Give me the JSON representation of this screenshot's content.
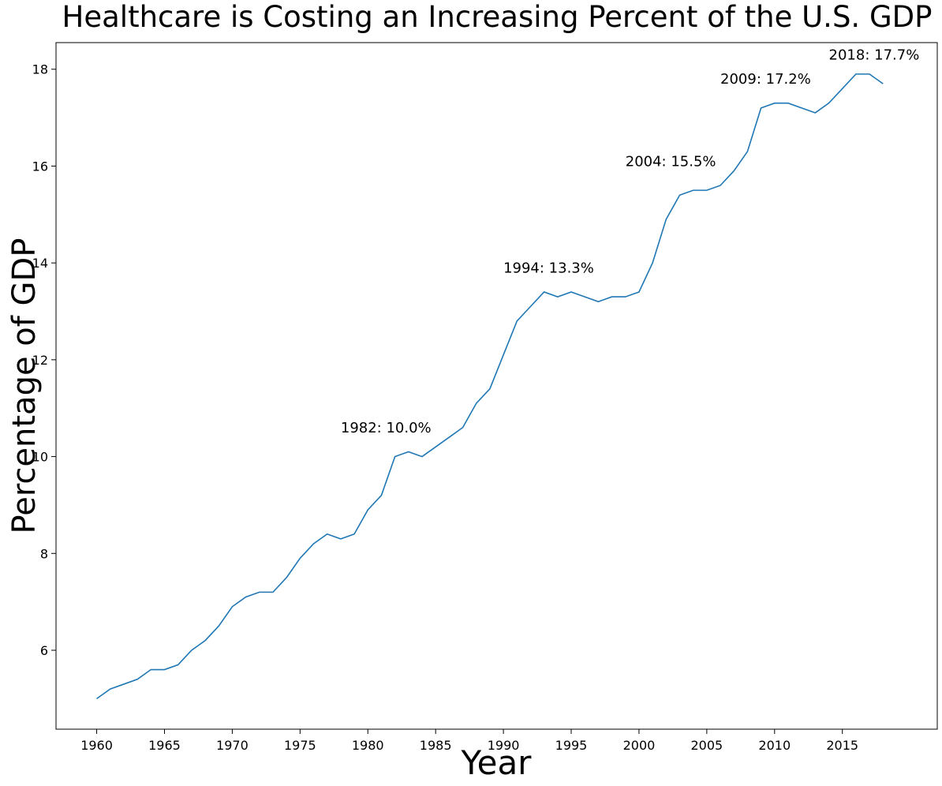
{
  "chart_data": {
    "type": "line",
    "title": "Healthcare is Costing an Increasing Percent of the U.S. GDP",
    "xlabel": "Year",
    "ylabel": "Percentage of GDP",
    "xlim": [
      1957,
      2022
    ],
    "ylim": [
      4.37,
      18.55
    ],
    "xticks": [
      1960,
      1965,
      1970,
      1975,
      1980,
      1985,
      1990,
      1995,
      2000,
      2005,
      2010,
      2015
    ],
    "yticks": [
      6,
      8,
      10,
      12,
      14,
      16,
      18
    ],
    "grid": false,
    "line_color": "#1f77b4",
    "series": [
      {
        "x": [
          1960,
          1961,
          1962,
          1963,
          1964,
          1965,
          1966,
          1967,
          1968,
          1969,
          1970,
          1971,
          1972,
          1973,
          1974,
          1975,
          1976,
          1977,
          1978,
          1979,
          1980,
          1981,
          1982,
          1983,
          1984,
          1985,
          1986,
          1987,
          1988,
          1989,
          1990,
          1991,
          1992,
          1993,
          1994,
          1995,
          1996,
          1997,
          1998,
          1999,
          2000,
          2001,
          2002,
          2003,
          2004,
          2005,
          2006,
          2007,
          2008,
          2009,
          2010,
          2011,
          2012,
          2013,
          2014,
          2015,
          2016,
          2017,
          2018
        ],
        "y": [
          5.0,
          5.2,
          5.3,
          5.4,
          5.6,
          5.6,
          5.7,
          6.0,
          6.2,
          6.5,
          6.9,
          7.1,
          7.2,
          7.2,
          7.5,
          7.9,
          8.2,
          8.4,
          8.3,
          8.4,
          8.9,
          9.2,
          10.0,
          10.1,
          10.0,
          10.2,
          10.4,
          10.6,
          11.1,
          11.4,
          12.1,
          12.8,
          13.1,
          13.4,
          13.3,
          13.4,
          13.3,
          13.2,
          13.3,
          13.3,
          13.4,
          14.0,
          14.9,
          15.4,
          15.5,
          15.5,
          15.6,
          15.9,
          16.3,
          17.2,
          17.3,
          17.3,
          17.2,
          17.1,
          17.3,
          17.6,
          17.9,
          17.9,
          17.7
        ]
      }
    ],
    "annotations": [
      {
        "text": "1982: 10.0%",
        "x": 1978,
        "y": 10.5
      },
      {
        "text": "1994: 13.3%",
        "x": 1990,
        "y": 13.8
      },
      {
        "text": "2004: 15.5%",
        "x": 1999,
        "y": 16.0
      },
      {
        "text": "2009: 17.2%",
        "x": 2006,
        "y": 17.7
      },
      {
        "text": "2018: 17.7%",
        "x": 2014,
        "y": 18.2
      }
    ]
  }
}
